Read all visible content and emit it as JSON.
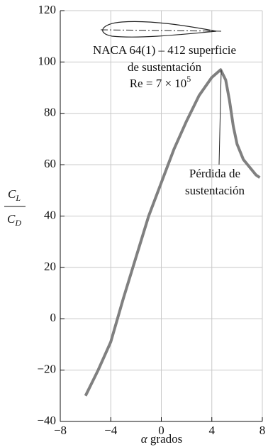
{
  "chart_data": {
    "type": "line",
    "xlabel": {
      "symbol": "α",
      "text": "grados"
    },
    "ylabel": {
      "numerator": {
        "base": "C",
        "sub": "L"
      },
      "denominator": {
        "base": "C",
        "sub": "D"
      }
    },
    "annotation": {
      "lines": [
        "NACA 64(1) – 412 superficie",
        "de sustentación",
        "Re = 7 × 10"
      ],
      "sup": "5"
    },
    "stall_label": [
      "Pérdida de",
      "sustentación"
    ],
    "x": [
      -6,
      -5,
      -4,
      -3,
      -2,
      -1,
      0,
      1,
      2,
      3,
      4,
      4.7,
      5.1,
      5.4,
      5.7,
      6,
      6.5,
      7,
      7.5,
      7.8
    ],
    "series": [
      {
        "color": "#808080",
        "values": [
          -30,
          -20,
          -9,
          8,
          24,
          40,
          53,
          66,
          77,
          87,
          94,
          97,
          93,
          85,
          75,
          68,
          62,
          59,
          56,
          55
        ]
      }
    ],
    "xlim": [
      -8,
      8
    ],
    "xticks": [
      {
        "value": -8,
        "label": "−8"
      },
      {
        "value": -4,
        "label": "−4"
      },
      0,
      4,
      8
    ],
    "ylim": [
      -40,
      120
    ],
    "yticks": [
      {
        "value": -40,
        "label": "−40"
      },
      {
        "value": -20,
        "label": "−20"
      },
      0,
      20,
      40,
      60,
      80,
      100,
      120
    ],
    "grid": true
  }
}
